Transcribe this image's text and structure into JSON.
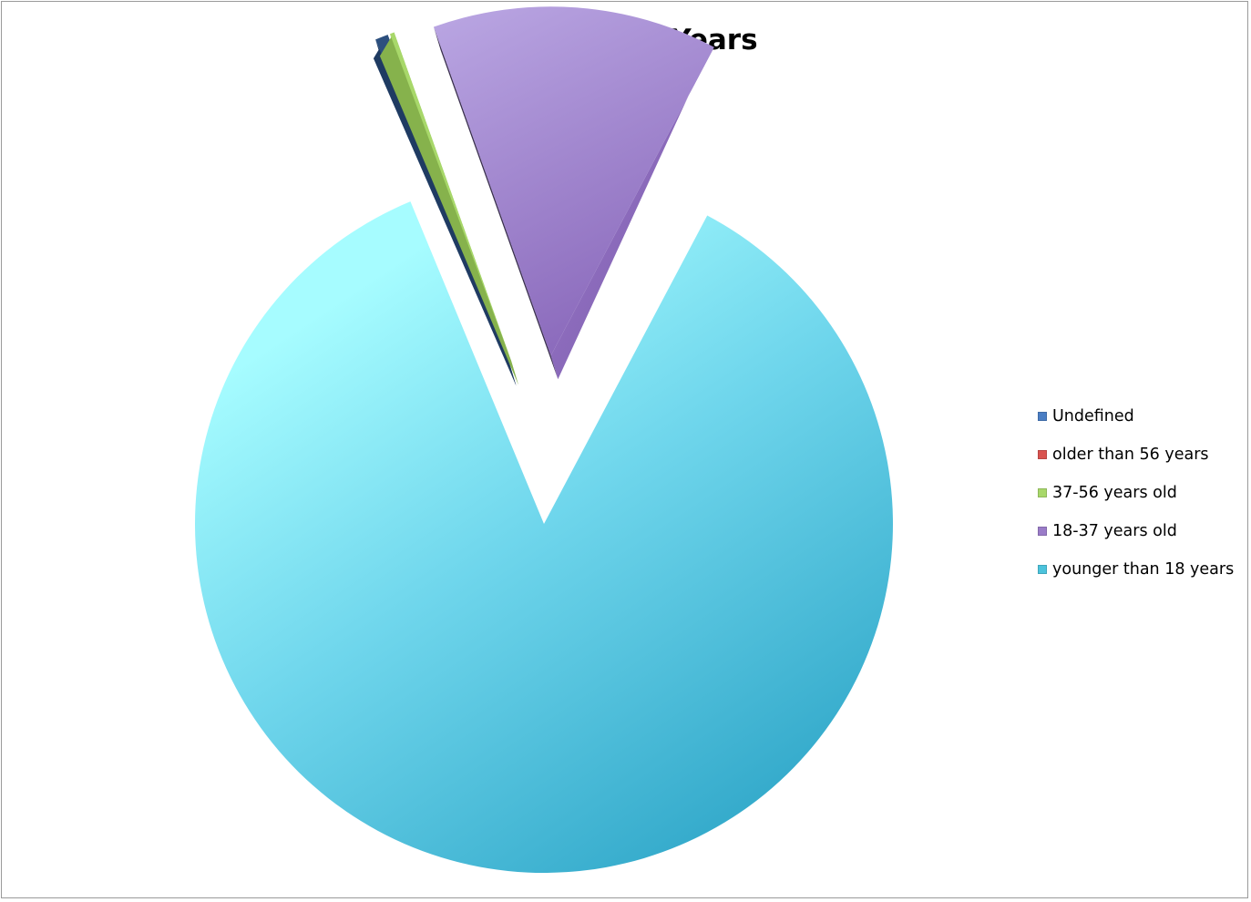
{
  "chart_data": {
    "type": "pie",
    "title": "Plane MFR Years",
    "legend_position": "right",
    "exploded": true,
    "style": "3d-gradient",
    "categories": [
      "Undefined",
      "older than 56 years",
      "37-56 years old",
      "18-37 years old",
      "younger than 18 years"
    ],
    "values": [
      0.6,
      0.0,
      0.2,
      13.2,
      86.0
    ],
    "colors": [
      "#4a7ec4",
      "#d9534f",
      "#a8d86a",
      "#9a7cc8",
      "#4cc3dc"
    ]
  }
}
